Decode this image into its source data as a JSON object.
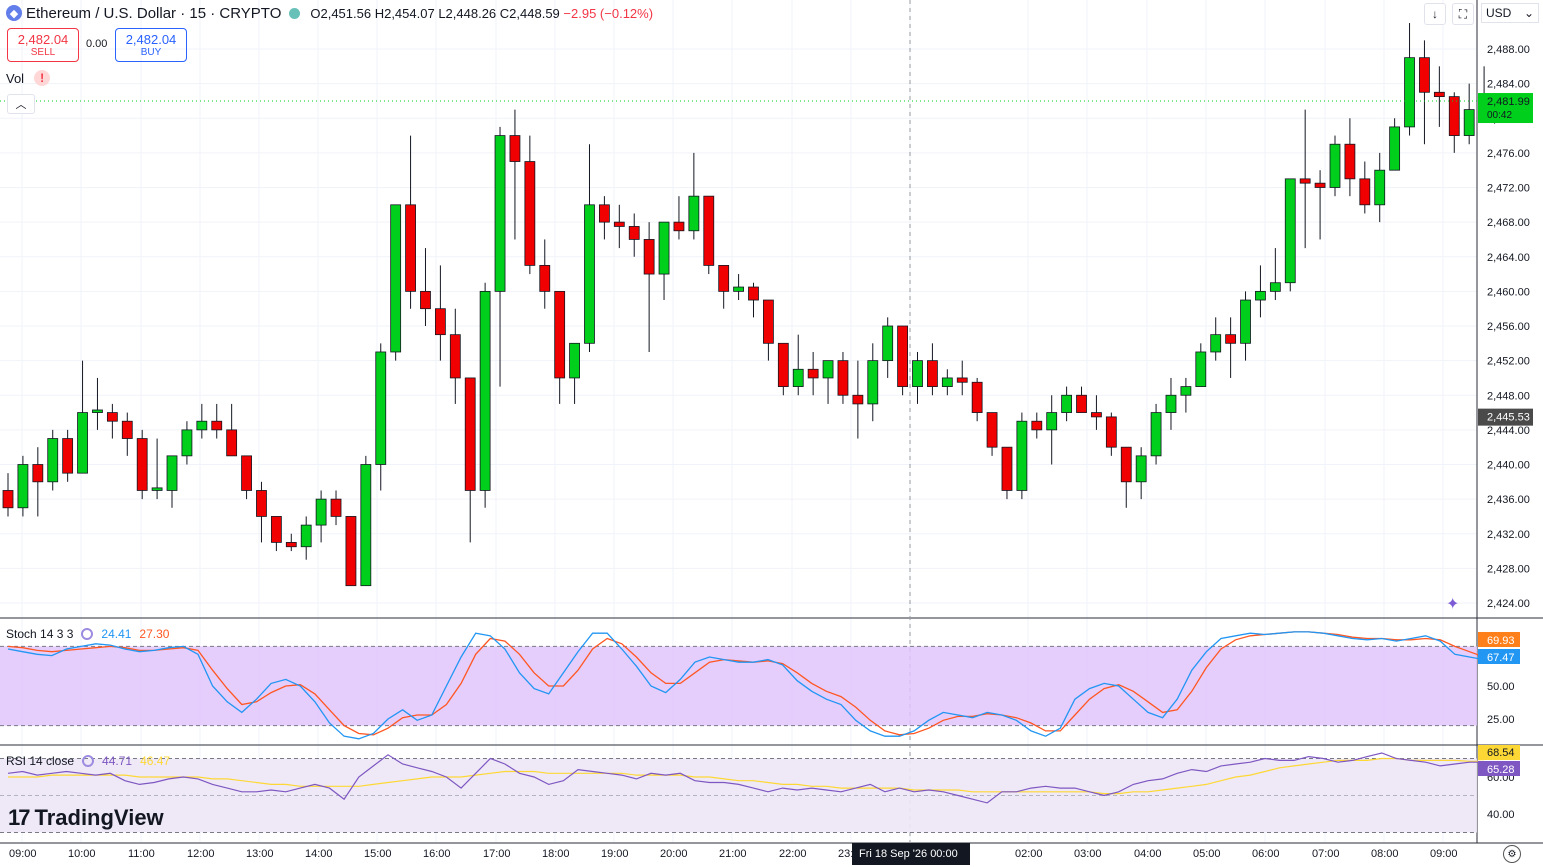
{
  "header": {
    "symbol": "Ethereum / U.S. Dollar · 15 · CRYPTO",
    "open": "O2,451.56",
    "high": "H2,454.07",
    "low": "L2,448.26",
    "close": "C2,448.59",
    "change": "−2.95 (−0.12%)"
  },
  "trade": {
    "sell_price": "2,482.04",
    "sell_label": "SELL",
    "spread": "0.00",
    "buy_price": "2,482.04",
    "buy_label": "BUY"
  },
  "volume_label": "Vol",
  "currency": "USD",
  "logo_text": "TradingView",
  "crosshair_date": "Fri 18 Sep '26   00:00",
  "price_badges": {
    "last": "2,481.99",
    "countdown": "00:42",
    "cross": "2,445.53"
  },
  "stoch": {
    "label": "Stoch 14 3 3",
    "k": "24.41",
    "d": "27.30",
    "badge_d": "69.93",
    "badge_k": "67.47",
    "ticks": [
      "50.00",
      "25.00"
    ]
  },
  "rsi": {
    "label": "RSI 14 close",
    "value": "44.71",
    "ma": "46.47",
    "badge_ma": "68.54",
    "badge_rsi": "65.28",
    "ticks": [
      "60.00",
      "40.00"
    ]
  },
  "colors": {
    "up": "#00d01c",
    "down": "#f00000",
    "stoch_k": "#2196f3",
    "stoch_d": "#ff5722",
    "rsi": "#7e57c2",
    "rsi_ma": "#fdd835",
    "band": "#e1c4fb"
  },
  "chart_data": {
    "type": "candlestick",
    "title": "Ethereum / U.S. Dollar · 15 · CRYPTO",
    "interval": "15",
    "ylim": [
      2422,
      2491
    ],
    "y_ticks": [
      2424,
      2428,
      2432,
      2436,
      2440,
      2444,
      2448,
      2452,
      2456,
      2460,
      2464,
      2468,
      2472,
      2476,
      2480,
      2484,
      2488
    ],
    "x_ticks": [
      "09:00",
      "10:00",
      "11:00",
      "12:00",
      "13:00",
      "14:00",
      "15:00",
      "16:00",
      "17:00",
      "18:00",
      "19:00",
      "20:00",
      "21:00",
      "22:00",
      "23:00",
      "00:00",
      "02:00",
      "03:00",
      "04:00",
      "05:00",
      "06:00",
      "07:00",
      "08:00",
      "09:00"
    ],
    "candles": [
      [
        2437,
        2435,
        2439,
        2434
      ],
      [
        2435,
        2440,
        2441,
        2434
      ],
      [
        2440,
        2438,
        2442,
        2434
      ],
      [
        2438,
        2443,
        2444,
        2437
      ],
      [
        2443,
        2439,
        2444,
        2438
      ],
      [
        2439,
        2446,
        2452,
        2439
      ],
      [
        2446,
        2446.3,
        2450,
        2444
      ],
      [
        2446,
        2445,
        2447,
        2443
      ],
      [
        2445,
        2443,
        2446,
        2441
      ],
      [
        2443,
        2437,
        2444,
        2436
      ],
      [
        2437,
        2437.3,
        2443,
        2436
      ],
      [
        2437,
        2441,
        2441,
        2435
      ],
      [
        2441,
        2444,
        2445,
        2440
      ],
      [
        2444,
        2445,
        2447,
        2443
      ],
      [
        2445,
        2444,
        2447,
        2443
      ],
      [
        2444,
        2441,
        2447,
        2441
      ],
      [
        2441,
        2437,
        2441,
        2436
      ],
      [
        2437,
        2434,
        2438,
        2431
      ],
      [
        2434,
        2431,
        2434,
        2430
      ],
      [
        2431,
        2430.5,
        2432,
        2430
      ],
      [
        2430.5,
        2433,
        2434,
        2429
      ],
      [
        2433,
        2436,
        2437,
        2431
      ],
      [
        2436,
        2434,
        2437,
        2433
      ],
      [
        2434,
        2426,
        2434,
        2426
      ],
      [
        2426,
        2440,
        2441,
        2426
      ],
      [
        2440,
        2453,
        2454,
        2437
      ],
      [
        2453,
        2470,
        2470,
        2452
      ],
      [
        2470,
        2460,
        2478,
        2458
      ],
      [
        2460,
        2458,
        2465,
        2456
      ],
      [
        2458,
        2455,
        2463,
        2452
      ],
      [
        2455,
        2450,
        2458,
        2447
      ],
      [
        2450,
        2437,
        2450,
        2431
      ],
      [
        2437,
        2460,
        2461,
        2435
      ],
      [
        2460,
        2478,
        2479,
        2449
      ],
      [
        2478,
        2475,
        2481,
        2466
      ],
      [
        2475,
        2463,
        2478,
        2462
      ],
      [
        2463,
        2460,
        2466,
        2458
      ],
      [
        2460,
        2450,
        2460,
        2447
      ],
      [
        2450,
        2454,
        2454,
        2447
      ],
      [
        2454,
        2470,
        2477,
        2453
      ],
      [
        2470,
        2468,
        2471,
        2466
      ],
      [
        2468,
        2467.5,
        2470,
        2465
      ],
      [
        2467.5,
        2466,
        2469,
        2464
      ],
      [
        2466,
        2462,
        2468,
        2453
      ],
      [
        2462,
        2468,
        2468,
        2459
      ],
      [
        2468,
        2467,
        2471,
        2466
      ],
      [
        2467,
        2471,
        2476,
        2466
      ],
      [
        2471,
        2463,
        2471,
        2462
      ],
      [
        2463,
        2460,
        2463,
        2458
      ],
      [
        2460,
        2460.5,
        2462,
        2459
      ],
      [
        2460.5,
        2459,
        2461,
        2457
      ],
      [
        2459,
        2454,
        2459,
        2452
      ],
      [
        2454,
        2449,
        2454,
        2448
      ],
      [
        2449,
        2451,
        2455,
        2448
      ],
      [
        2451,
        2450,
        2453,
        2448
      ],
      [
        2450,
        2452,
        2452,
        2447
      ],
      [
        2452,
        2448,
        2453,
        2447
      ],
      [
        2448,
        2447,
        2452,
        2443
      ],
      [
        2447,
        2452,
        2454,
        2445
      ],
      [
        2452,
        2456,
        2457,
        2450
      ],
      [
        2456,
        2449,
        2456,
        2448
      ],
      [
        2449,
        2452,
        2453,
        2447
      ],
      [
        2452,
        2449,
        2454,
        2448
      ],
      [
        2449,
        2450,
        2451,
        2448
      ],
      [
        2450,
        2449.5,
        2452,
        2448
      ],
      [
        2449.5,
        2446,
        2450,
        2445
      ],
      [
        2446,
        2442,
        2446,
        2441
      ],
      [
        2442,
        2437,
        2442,
        2436
      ],
      [
        2437,
        2445,
        2446,
        2436
      ],
      [
        2445,
        2444,
        2446,
        2443
      ],
      [
        2444,
        2446,
        2448,
        2440
      ],
      [
        2446,
        2448,
        2449,
        2445
      ],
      [
        2448,
        2446,
        2449,
        2446
      ],
      [
        2446,
        2445.5,
        2448,
        2444
      ],
      [
        2445.5,
        2442,
        2446,
        2441
      ],
      [
        2442,
        2438,
        2442,
        2435
      ],
      [
        2438,
        2441,
        2442,
        2436
      ],
      [
        2441,
        2446,
        2447,
        2440
      ],
      [
        2446,
        2448,
        2450,
        2444
      ],
      [
        2448,
        2449,
        2450,
        2446
      ],
      [
        2449,
        2453,
        2454,
        2449
      ],
      [
        2453,
        2455,
        2457,
        2452
      ],
      [
        2455,
        2454,
        2457,
        2450
      ],
      [
        2454,
        2459,
        2460,
        2452
      ],
      [
        2459,
        2460,
        2463,
        2457
      ],
      [
        2460,
        2461,
        2465,
        2459
      ],
      [
        2461,
        2473,
        2473,
        2460
      ],
      [
        2473,
        2472.5,
        2481,
        2465
      ],
      [
        2472.5,
        2472,
        2474,
        2466
      ],
      [
        2472,
        2477,
        2478,
        2471
      ],
      [
        2477,
        2473,
        2480,
        2471
      ],
      [
        2473,
        2470,
        2475,
        2469
      ],
      [
        2470,
        2474,
        2476,
        2468
      ],
      [
        2474,
        2479,
        2480,
        2474
      ],
      [
        2479,
        2487,
        2491,
        2478
      ],
      [
        2487,
        2483,
        2489,
        2477
      ],
      [
        2483,
        2482.5,
        2486,
        2479
      ],
      [
        2482.5,
        2478,
        2483,
        2476
      ],
      [
        2478,
        2481,
        2484,
        2477
      ],
      [
        2481,
        2482,
        2486,
        2481
      ]
    ]
  }
}
